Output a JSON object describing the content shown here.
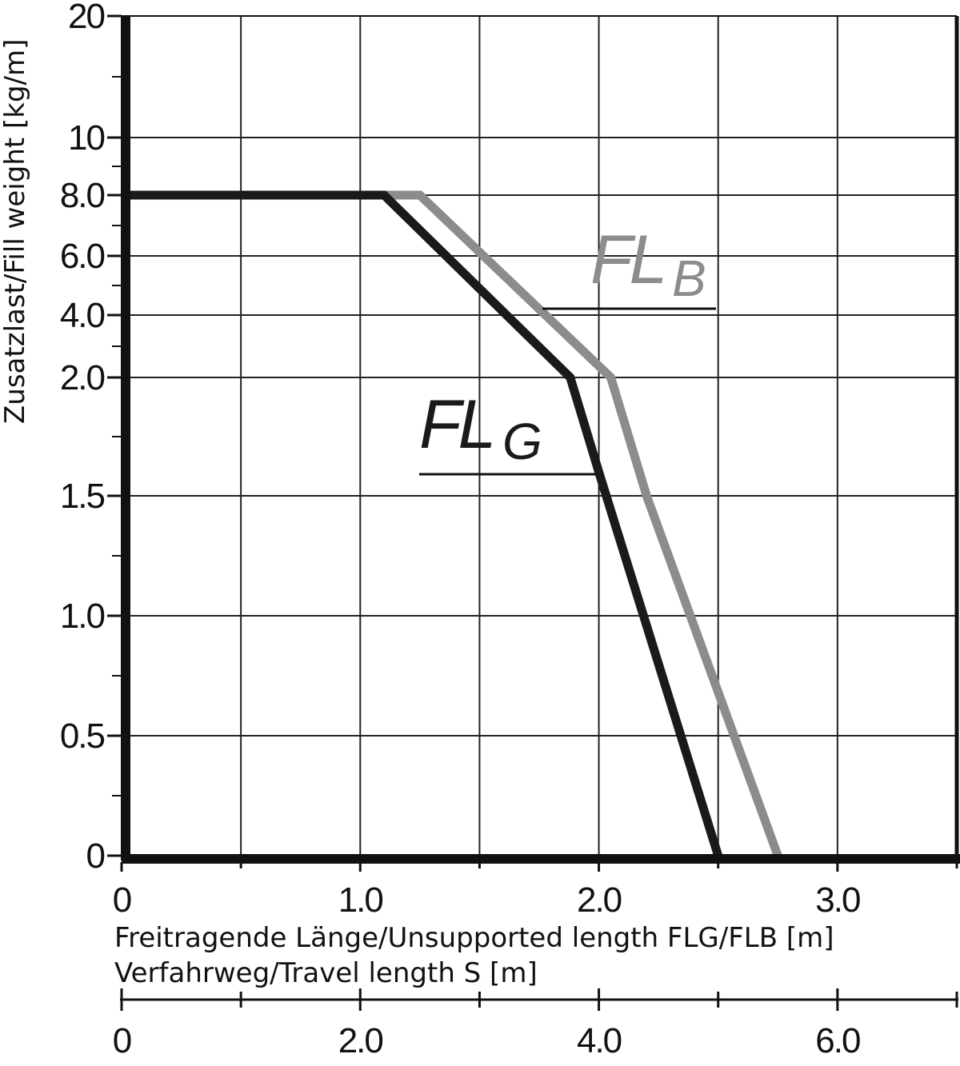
{
  "chart_data": {
    "type": "line",
    "ylabel": "Zusatzlast/Fill weight [kg/m]",
    "xlabel": "Freitragende Länge/Unsupported length FLG/FLB [m]",
    "x2label": "Verfahrweg/Travel length S [m]",
    "y_ticks": [
      "0",
      "0.5",
      "1.0",
      "1.5",
      "2.0",
      "4.0",
      "6.0",
      "8.0",
      "10",
      "20"
    ],
    "x_ticks": [
      "0",
      "1.0",
      "2.0",
      "3.0"
    ],
    "x_tick_values": [
      0,
      1.0,
      2.0,
      3.0
    ],
    "x2_ticks": [
      "0",
      "2.0",
      "4.0",
      "6.0"
    ],
    "x2_tick_values": [
      0,
      2.0,
      4.0,
      6.0
    ],
    "xlim": [
      0,
      3.5
    ],
    "x2lim": [
      0,
      7.0
    ],
    "grid": true,
    "series": [
      {
        "name_main": "FL",
        "name_sub": "G",
        "color": "#1a1a1a",
        "x": [
          0,
          1.1,
          1.88,
          2.0,
          2.5
        ],
        "y": [
          8.0,
          8.0,
          2.0,
          1.6,
          0
        ]
      },
      {
        "name_main": "FL",
        "name_sub": "B",
        "color": "#8c8c8c",
        "x": [
          0,
          1.25,
          2.05,
          2.2,
          2.75
        ],
        "y": [
          8.0,
          8.0,
          2.0,
          1.5,
          0
        ]
      }
    ]
  }
}
